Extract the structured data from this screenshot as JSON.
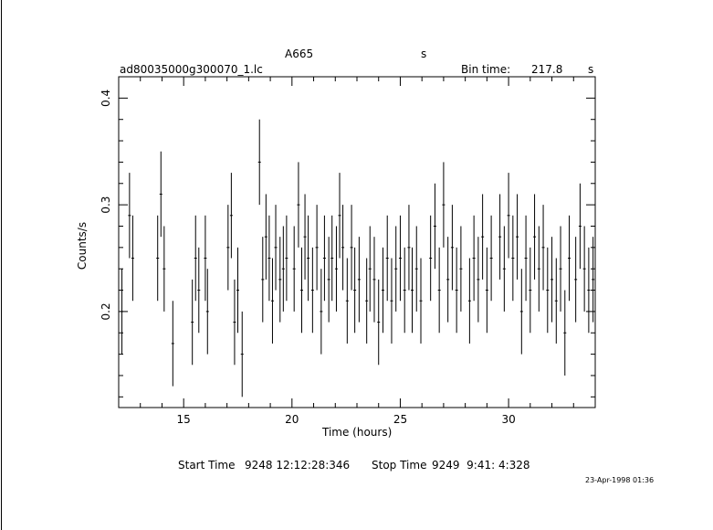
{
  "header": {
    "object_name": "A665",
    "units_label": "s",
    "filename": "ad80035000g300070_1.lc",
    "bin_time_label": "Bin time:",
    "bin_time_value": "217.8",
    "bin_time_unit": "s"
  },
  "footer": {
    "start_label": "Start Time",
    "start_value": "9248 12:12:28:346",
    "stop_label": "Stop Time",
    "stop_value": "9249  9:41: 4:328",
    "date_stamp": "23-Apr-1998 01:36"
  },
  "chart_data": {
    "type": "scatter",
    "xlabel": "Time (hours)",
    "ylabel": "Counts/s",
    "xlim": [
      12.0,
      34.0
    ],
    "ylim": [
      0.11,
      0.42
    ],
    "xticks": [
      15,
      20,
      25,
      30
    ],
    "yticks": [
      0.2,
      0.3,
      0.4
    ],
    "xtick_labels": [
      "15",
      "20",
      "25",
      "30"
    ],
    "ytick_labels": [
      "0.2",
      "0.3",
      "0.4"
    ],
    "grid": false,
    "series": [
      {
        "x": [
          12.15,
          12.5,
          12.65,
          13.8,
          13.95,
          14.1,
          14.5,
          15.4,
          15.55,
          15.7,
          16.0,
          16.1,
          17.05,
          17.2,
          17.35,
          17.5,
          17.7,
          18.5,
          18.65,
          18.8,
          18.95,
          19.1,
          19.25,
          19.45,
          19.6,
          19.75,
          20.1,
          20.3,
          20.45,
          20.6,
          20.75,
          20.95,
          21.15,
          21.35,
          21.5,
          21.7,
          21.85,
          22.05,
          22.2,
          22.35,
          22.55,
          22.75,
          22.9,
          23.1,
          23.45,
          23.6,
          23.8,
          24.0,
          24.2,
          24.4,
          24.6,
          24.8,
          25.0,
          25.2,
          25.4,
          25.55,
          25.75,
          25.95,
          26.4,
          26.6,
          26.8,
          27.0,
          27.2,
          27.4,
          27.6,
          27.8,
          28.2,
          28.4,
          28.6,
          28.8,
          29.0,
          29.2,
          29.6,
          29.8,
          30.0,
          30.2,
          30.4,
          30.6,
          30.8,
          31.0,
          31.2,
          31.4,
          31.6,
          31.8,
          32.0,
          32.2,
          32.4,
          32.6,
          32.8,
          33.1,
          33.3,
          33.5,
          33.7,
          33.9
        ],
        "y": [
          0.2,
          0.29,
          0.25,
          0.25,
          0.31,
          0.24,
          0.17,
          0.19,
          0.25,
          0.22,
          0.25,
          0.2,
          0.26,
          0.29,
          0.19,
          0.22,
          0.16,
          0.34,
          0.23,
          0.27,
          0.25,
          0.21,
          0.26,
          0.23,
          0.24,
          0.25,
          0.24,
          0.3,
          0.22,
          0.27,
          0.25,
          0.22,
          0.26,
          0.2,
          0.25,
          0.23,
          0.25,
          0.24,
          0.29,
          0.26,
          0.21,
          0.26,
          0.22,
          0.23,
          0.21,
          0.24,
          0.23,
          0.19,
          0.22,
          0.25,
          0.21,
          0.24,
          0.25,
          0.22,
          0.26,
          0.22,
          0.24,
          0.21,
          0.25,
          0.28,
          0.22,
          0.3,
          0.23,
          0.26,
          0.22,
          0.24,
          0.21,
          0.25,
          0.23,
          0.27,
          0.22,
          0.25,
          0.27,
          0.24,
          0.29,
          0.25,
          0.27,
          0.2,
          0.25,
          0.22,
          0.27,
          0.24,
          0.26,
          0.22,
          0.23,
          0.21,
          0.24,
          0.18,
          0.25,
          0.23,
          0.28,
          0.24,
          0.22,
          0.23
        ],
        "err": [
          0.04,
          0.04,
          0.04,
          0.04,
          0.04,
          0.04,
          0.04,
          0.04,
          0.04,
          0.04,
          0.04,
          0.04,
          0.04,
          0.04,
          0.04,
          0.04,
          0.04,
          0.04,
          0.04,
          0.04,
          0.04,
          0.04,
          0.04,
          0.04,
          0.04,
          0.04,
          0.04,
          0.04,
          0.04,
          0.04,
          0.04,
          0.04,
          0.04,
          0.04,
          0.04,
          0.04,
          0.04,
          0.04,
          0.04,
          0.04,
          0.04,
          0.04,
          0.04,
          0.04,
          0.04,
          0.04,
          0.04,
          0.04,
          0.04,
          0.04,
          0.04,
          0.04,
          0.04,
          0.04,
          0.04,
          0.04,
          0.04,
          0.04,
          0.04,
          0.04,
          0.04,
          0.04,
          0.04,
          0.04,
          0.04,
          0.04,
          0.04,
          0.04,
          0.04,
          0.04,
          0.04,
          0.04,
          0.04,
          0.04,
          0.04,
          0.04,
          0.04,
          0.04,
          0.04,
          0.04,
          0.04,
          0.04,
          0.04,
          0.04,
          0.04,
          0.04,
          0.04,
          0.04,
          0.04,
          0.04,
          0.04,
          0.04,
          0.04,
          0.04
        ]
      }
    ]
  }
}
